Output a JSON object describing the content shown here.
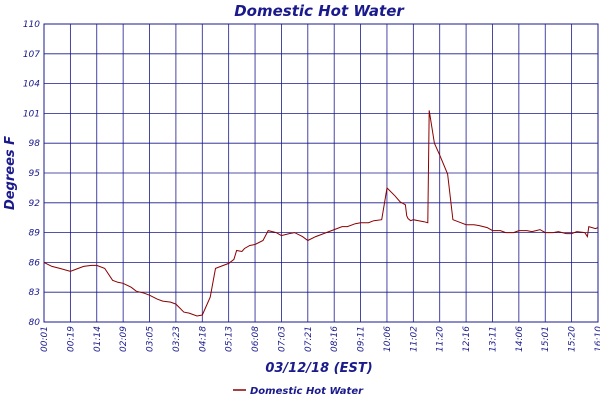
{
  "chart_data": {
    "type": "line",
    "title": "Domestic Hot Water",
    "xlabel": "03/12/18 (EST)",
    "ylabel": "Degrees F",
    "ylim": [
      80,
      110
    ],
    "yticks": [
      "80",
      "83",
      "86",
      "89",
      "92",
      "95",
      "98",
      "101",
      "104",
      "107",
      "110"
    ],
    "xticks": [
      "00:01",
      "00:19",
      "01:14",
      "02:09",
      "03:05",
      "03:23",
      "04:18",
      "05:13",
      "06:08",
      "07:03",
      "07:21",
      "08:16",
      "09:11",
      "10:06",
      "11:02",
      "11:20",
      "12:16",
      "13:11",
      "14:06",
      "15:01",
      "15:20",
      "16:10"
    ],
    "grid": true,
    "legend_position": "bottom",
    "colors": {
      "series": "#8b0000",
      "grid": "#1a1a8c",
      "text": "#1a1a8c"
    },
    "series": [
      {
        "name": "Domestic Hot Water",
        "x": [
          0,
          0.3,
          0.6,
          1,
          1.3,
          1.5,
          1.8,
          2,
          2.3,
          2.6,
          2.8,
          3,
          3.3,
          3.5,
          3.8,
          4,
          4.3,
          4.5,
          4.8,
          5,
          5.3,
          5.5,
          5.8,
          6,
          6.3,
          6.5,
          6.8,
          7,
          7.2,
          7.3,
          7.5,
          7.6,
          7.8,
          8,
          8.3,
          8.5,
          8.8,
          9,
          9.3,
          9.5,
          9.8,
          10,
          10.3,
          10.5,
          10.8,
          11,
          11.3,
          11.5,
          11.8,
          12,
          12.3,
          12.5,
          12.8,
          13,
          13.3,
          13.5,
          13.7,
          13.75,
          13.8,
          13.9,
          14,
          14.2,
          14.4,
          14.55,
          14.6,
          14.8,
          15,
          15.3,
          15.5,
          15.8,
          16,
          16.3,
          16.5,
          16.8,
          17,
          17.3,
          17.5,
          17.8,
          18,
          18.3,
          18.5,
          18.8,
          19,
          19.3,
          19.5,
          19.8,
          20,
          20.2,
          20.5,
          20.6,
          20.65,
          20.9,
          21
        ],
        "y": [
          86,
          85.6,
          85.4,
          85.1,
          85.4,
          85.6,
          85.7,
          85.7,
          85.4,
          84.2,
          84.0,
          83.9,
          83.5,
          83.1,
          82.9,
          82.7,
          82.3,
          82.1,
          82.0,
          81.8,
          81.0,
          80.9,
          80.6,
          80.7,
          82.5,
          85.4,
          85.7,
          85.9,
          86.3,
          87.2,
          87.1,
          87.4,
          87.7,
          87.8,
          88.2,
          89.2,
          89.0,
          88.7,
          88.9,
          89.0,
          88.6,
          88.2,
          88.6,
          88.8,
          89.1,
          89.3,
          89.6,
          89.6,
          89.9,
          90.0,
          90.0,
          90.2,
          90.3,
          93.5,
          92.7,
          92.1,
          91.8,
          90.7,
          90.4,
          90.2,
          90.3,
          90.2,
          90.1,
          90.0,
          101.3,
          98.0,
          96.8,
          94.9,
          90.3,
          90.0,
          89.8,
          89.8,
          89.7,
          89.5,
          89.2,
          89.2,
          89.0,
          89.0,
          89.2,
          89.2,
          89.1,
          89.3,
          89.0,
          89.0,
          89.1,
          88.9,
          88.9,
          89.1,
          89.0,
          88.6,
          89.6,
          89.4,
          89.5
        ]
      }
    ]
  }
}
